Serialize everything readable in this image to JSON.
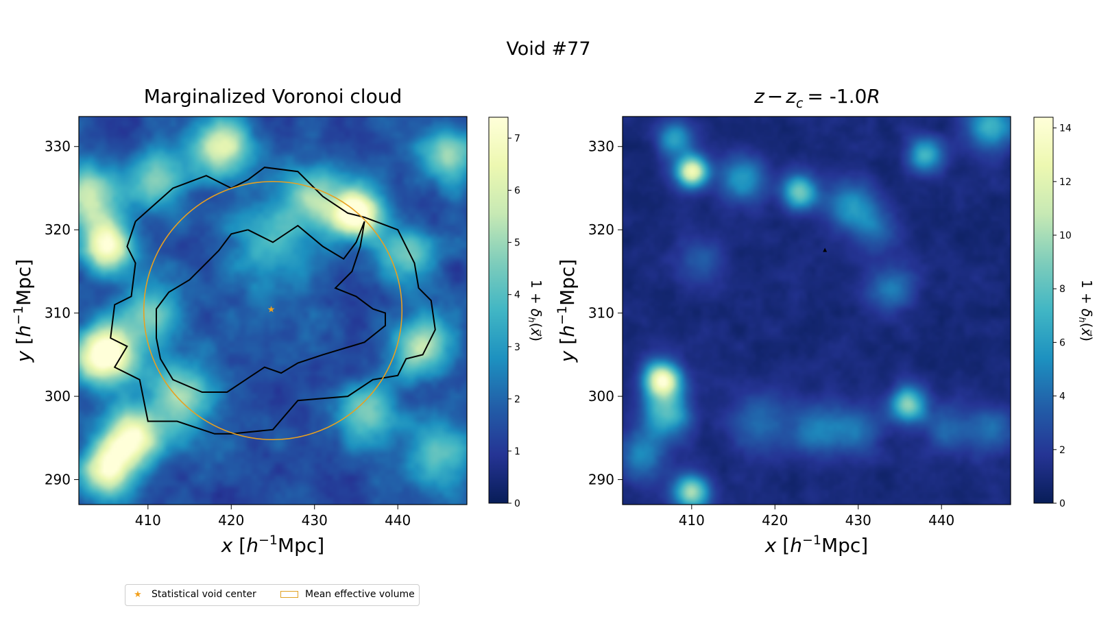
{
  "figure": {
    "suptitle": "Void #77",
    "legend": [
      {
        "label": "Statistical void center",
        "marker": "star",
        "color": "#f2a01c"
      },
      {
        "label": "Mean effective volume",
        "marker": "rect-outline",
        "color": "#e0a020"
      }
    ]
  },
  "chart_data": [
    {
      "type": "heatmap",
      "title": "Marginalized Voronoi cloud",
      "xlabel": "x [h⁻¹Mpc]",
      "ylabel": "y [h⁻¹Mpc]",
      "xlim": [
        401.7,
        448.3
      ],
      "ylim": [
        287.0,
        333.6
      ],
      "xticks": [
        410,
        420,
        430,
        440
      ],
      "yticks": [
        290,
        300,
        310,
        320,
        330
      ],
      "colormap": "YlGnBu_r",
      "colorbar": {
        "label": "1+δh(x⃗)",
        "min": 0,
        "max": 7.4,
        "ticks": [
          0,
          1,
          2,
          3,
          4,
          5,
          6,
          7
        ]
      },
      "blobs": [
        {
          "x": 405.0,
          "y": 305.0,
          "v": 7.0,
          "s": 2.5
        },
        {
          "x": 405.0,
          "y": 318.0,
          "v": 6.2,
          "s": 2.0
        },
        {
          "x": 408.0,
          "y": 295.0,
          "v": 5.8,
          "s": 2.5
        },
        {
          "x": 405.0,
          "y": 291.0,
          "v": 5.0,
          "s": 2.2
        },
        {
          "x": 403.0,
          "y": 324.0,
          "v": 4.5,
          "s": 2.5
        },
        {
          "x": 435.0,
          "y": 322.0,
          "v": 6.6,
          "s": 2.0
        },
        {
          "x": 430.0,
          "y": 324.0,
          "v": 3.5,
          "s": 2.5
        },
        {
          "x": 419.0,
          "y": 330.0,
          "v": 4.5,
          "s": 2.5
        },
        {
          "x": 411.0,
          "y": 326.0,
          "v": 3.0,
          "s": 2.5
        },
        {
          "x": 443.0,
          "y": 306.0,
          "v": 4.0,
          "s": 2.5
        },
        {
          "x": 441.0,
          "y": 317.0,
          "v": 3.0,
          "s": 2.5
        },
        {
          "x": 414.0,
          "y": 300.0,
          "v": 3.5,
          "s": 3.0
        },
        {
          "x": 410.0,
          "y": 310.0,
          "v": 3.2,
          "s": 2.5
        },
        {
          "x": 436.0,
          "y": 298.0,
          "v": 3.0,
          "s": 2.5
        },
        {
          "x": 446.0,
          "y": 329.0,
          "v": 3.2,
          "s": 2.5
        },
        {
          "x": 425.0,
          "y": 318.0,
          "v": 2.0,
          "s": 4.0
        },
        {
          "x": 445.0,
          "y": 293.0,
          "v": 2.5,
          "s": 3.0
        }
      ],
      "contours": [
        {
          "name": "outer",
          "points": [
            [
              408.5,
              321.0
            ],
            [
              413.0,
              325.0
            ],
            [
              417.0,
              326.5
            ],
            [
              420.0,
              325.0
            ],
            [
              422.0,
              326.0
            ],
            [
              424.0,
              327.5
            ],
            [
              428.0,
              327.0
            ],
            [
              431.0,
              324.0
            ],
            [
              434.0,
              322.0
            ],
            [
              436.0,
              321.5
            ],
            [
              440.0,
              320.0
            ],
            [
              442.0,
              316.0
            ],
            [
              442.5,
              313.0
            ],
            [
              444.0,
              311.5
            ],
            [
              444.5,
              308.0
            ],
            [
              443.0,
              305.0
            ],
            [
              441.0,
              304.5
            ],
            [
              440.0,
              302.5
            ],
            [
              437.0,
              302.0
            ],
            [
              434.0,
              300.0
            ],
            [
              428.0,
              299.5
            ],
            [
              425.0,
              296.0
            ],
            [
              420.0,
              295.5
            ],
            [
              418.0,
              295.5
            ],
            [
              413.5,
              297.0
            ],
            [
              410.0,
              297.0
            ],
            [
              409.0,
              302.0
            ],
            [
              406.0,
              303.5
            ],
            [
              407.5,
              306.0
            ],
            [
              405.5,
              307.0
            ],
            [
              406.0,
              311.0
            ],
            [
              408.0,
              312.0
            ],
            [
              408.5,
              316.0
            ],
            [
              407.5,
              318.0
            ],
            [
              408.5,
              321.0
            ]
          ]
        },
        {
          "name": "inner",
          "points": [
            [
              422.0,
              320.0
            ],
            [
              425.0,
              318.5
            ],
            [
              428.0,
              320.5
            ],
            [
              431.0,
              318.0
            ],
            [
              433.5,
              316.5
            ],
            [
              435.0,
              318.5
            ],
            [
              436.0,
              321.0
            ],
            [
              435.5,
              318.0
            ],
            [
              434.5,
              315.0
            ],
            [
              432.5,
              313.0
            ],
            [
              435.0,
              312.0
            ],
            [
              437.0,
              310.5
            ],
            [
              438.5,
              310.0
            ],
            [
              438.5,
              308.5
            ],
            [
              436.0,
              306.5
            ],
            [
              431.0,
              305.0
            ],
            [
              428.0,
              304.0
            ],
            [
              426.0,
              302.8
            ],
            [
              424.0,
              303.5
            ],
            [
              422.5,
              302.5
            ],
            [
              419.5,
              300.5
            ],
            [
              416.5,
              300.5
            ],
            [
              413.0,
              302.0
            ],
            [
              411.5,
              304.5
            ],
            [
              411.0,
              307.0
            ],
            [
              411.0,
              310.5
            ],
            [
              412.5,
              312.5
            ],
            [
              415.0,
              314.0
            ],
            [
              416.5,
              315.5
            ],
            [
              418.5,
              317.5
            ],
            [
              420.0,
              319.5
            ],
            [
              422.0,
              320.0
            ]
          ]
        }
      ],
      "void_center": {
        "x": 424.8,
        "y": 310.4
      },
      "effective_circle": {
        "cx": 425.0,
        "cy": 310.3,
        "r": 15.5
      }
    },
    {
      "type": "heatmap",
      "title_parts": {
        "z": "z",
        "minus": "−",
        "zc": "z",
        "sub": "c",
        "eq": "= -1.0",
        "R": "R"
      },
      "xlabel": "x [h⁻¹Mpc]",
      "ylabel": "y [h⁻¹Mpc]",
      "xlim": [
        401.7,
        448.3
      ],
      "ylim": [
        287.0,
        333.6
      ],
      "xticks": [
        410,
        420,
        430,
        440
      ],
      "yticks": [
        290,
        300,
        310,
        320,
        330
      ],
      "colormap": "YlGnBu_r",
      "colorbar": {
        "label": "1+δh(x⃗)",
        "min": 0,
        "max": 14.4,
        "ticks": [
          0,
          2,
          4,
          6,
          8,
          10,
          12,
          14
        ]
      },
      "blobs": [
        {
          "x": 410.0,
          "y": 327.0,
          "v": 12.0,
          "s": 1.3
        },
        {
          "x": 406.5,
          "y": 302.0,
          "v": 12.5,
          "s": 1.5
        },
        {
          "x": 407.0,
          "y": 298.0,
          "v": 7.0,
          "s": 2.0
        },
        {
          "x": 410.0,
          "y": 288.5,
          "v": 9.0,
          "s": 1.5
        },
        {
          "x": 423.0,
          "y": 324.5,
          "v": 7.5,
          "s": 1.5
        },
        {
          "x": 416.0,
          "y": 326.0,
          "v": 5.0,
          "s": 2.0
        },
        {
          "x": 429.0,
          "y": 323.0,
          "v": 4.5,
          "s": 2.0
        },
        {
          "x": 436.0,
          "y": 299.0,
          "v": 8.0,
          "s": 1.5
        },
        {
          "x": 438.0,
          "y": 329.0,
          "v": 6.0,
          "s": 1.5
        },
        {
          "x": 408.0,
          "y": 331.0,
          "v": 5.0,
          "s": 1.5
        },
        {
          "x": 446.0,
          "y": 332.5,
          "v": 6.0,
          "s": 2.0
        },
        {
          "x": 434.0,
          "y": 313.0,
          "v": 3.5,
          "s": 2.0
        },
        {
          "x": 425.0,
          "y": 296.0,
          "v": 3.5,
          "s": 2.5
        },
        {
          "x": 418.0,
          "y": 297.0,
          "v": 3.0,
          "s": 2.5
        },
        {
          "x": 430.0,
          "y": 296.0,
          "v": 3.2,
          "s": 2.0
        },
        {
          "x": 404.0,
          "y": 293.0,
          "v": 4.0,
          "s": 2.0
        },
        {
          "x": 446.0,
          "y": 296.0,
          "v": 3.0,
          "s": 2.0
        },
        {
          "x": 441.0,
          "y": 296.0,
          "v": 3.0,
          "s": 2.0
        },
        {
          "x": 432.0,
          "y": 320.0,
          "v": 3.0,
          "s": 2.0
        },
        {
          "x": 411.0,
          "y": 316.0,
          "v": 2.5,
          "s": 2.0
        }
      ],
      "marker": {
        "x": 426.0,
        "y": 317.5
      }
    }
  ]
}
